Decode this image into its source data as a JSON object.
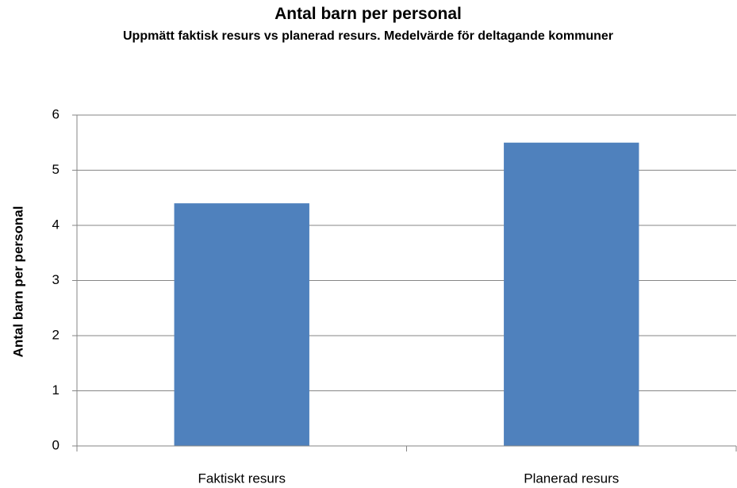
{
  "chart_data": {
    "type": "bar",
    "title": "Antal barn per personal",
    "subtitle": "Uppmätt faktisk resurs vs planerad resurs. Medelvärde för deltagande kommuner",
    "y_label": "Antal barn per personal",
    "categories": [
      "Faktiskt resurs",
      "Planerad resurs"
    ],
    "values": [
      4.4,
      5.5
    ],
    "color": "#4f81bd",
    "ylim": [
      0,
      6
    ],
    "yticks": [
      0,
      1,
      2,
      3,
      4,
      5,
      6
    ],
    "grid": true
  }
}
